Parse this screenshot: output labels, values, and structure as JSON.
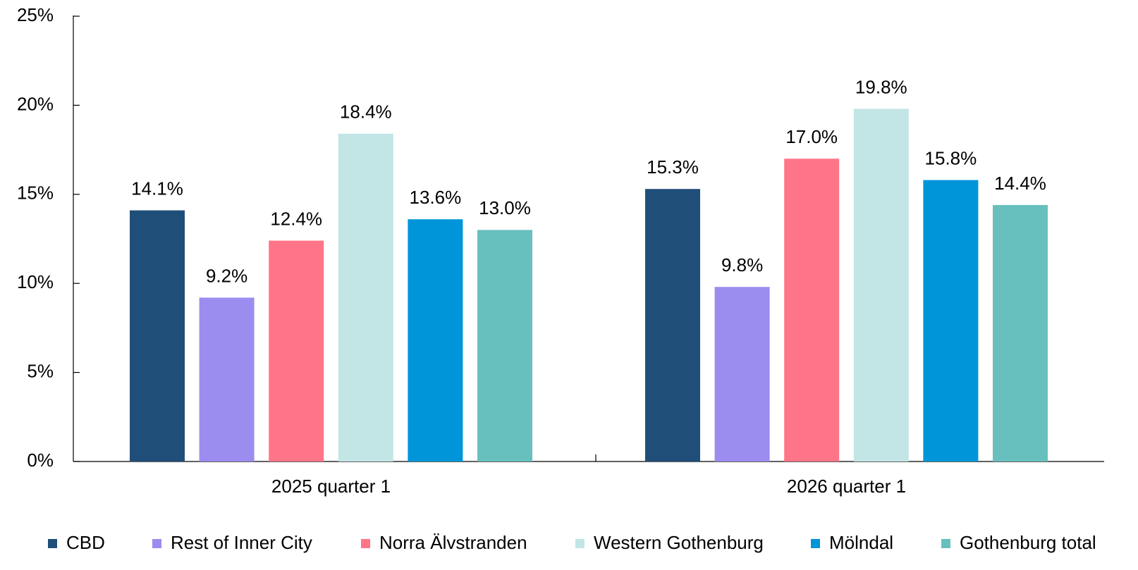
{
  "chart_data": {
    "type": "bar",
    "categories": [
      "2025 quarter 1",
      "2026 quarter 1"
    ],
    "series": [
      {
        "name": "CBD",
        "color": "#1f4e79",
        "values": [
          14.1,
          15.3
        ],
        "value_labels": [
          "14.1%",
          "15.3%"
        ]
      },
      {
        "name": "Rest of Inner City",
        "color": "#9b8cef",
        "values": [
          9.2,
          9.8
        ],
        "value_labels": [
          "9.2%",
          "9.8%"
        ]
      },
      {
        "name": "Norra Älvstranden",
        "color": "#ff7588",
        "values": [
          12.4,
          17.0
        ],
        "value_labels": [
          "12.4%",
          "17.0%"
        ]
      },
      {
        "name": "Western Gothenburg",
        "color": "#c2e5e6",
        "values": [
          18.4,
          19.8
        ],
        "value_labels": [
          "18.4%",
          "19.8%"
        ]
      },
      {
        "name": "Mölndal",
        "color": "#0095d9",
        "values": [
          13.6,
          15.8
        ],
        "value_labels": [
          "13.6%",
          "15.8%"
        ]
      },
      {
        "name": "Gothenburg total",
        "color": "#67c0bd",
        "values": [
          13.0,
          14.4
        ],
        "value_labels": [
          "13.0%",
          "14.4%"
        ]
      }
    ],
    "ylim": [
      0,
      25
    ],
    "yticks": [
      {
        "value": 0,
        "label": "0%"
      },
      {
        "value": 5,
        "label": "5%"
      },
      {
        "value": 10,
        "label": "10%"
      },
      {
        "value": 15,
        "label": "15%"
      },
      {
        "value": 20,
        "label": "20%"
      },
      {
        "value": 25,
        "label": "25%"
      }
    ],
    "grid": false,
    "legend": "bottom"
  }
}
